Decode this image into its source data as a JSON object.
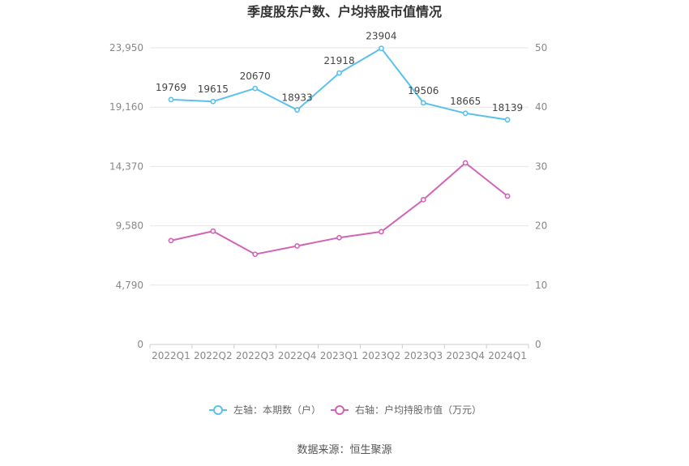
{
  "title": "季度股东户数、户均持股市值情况",
  "source": "数据来源：恒生聚源",
  "chart_data": {
    "type": "line",
    "categories": [
      "2022Q1",
      "2022Q2",
      "2022Q3",
      "2022Q4",
      "2023Q1",
      "2023Q2",
      "2023Q3",
      "2023Q4",
      "2024Q1"
    ],
    "left_axis": {
      "ticks": [
        "0",
        "4,790",
        "9,580",
        "14,370",
        "19,160",
        "23,950"
      ],
      "ylim": [
        0,
        23950
      ]
    },
    "right_axis": {
      "ticks": [
        "0",
        "10",
        "20",
        "30",
        "40",
        "50"
      ],
      "ylim": [
        0,
        50
      ]
    },
    "grid": true,
    "legend_position": "bottom",
    "series": [
      {
        "name": "左轴：本期数（户）",
        "axis": "left",
        "color": "#5bc0eb",
        "values": [
          19769,
          19615,
          20670,
          18933,
          21918,
          23904,
          19506,
          18665,
          18139
        ],
        "labels": [
          "19769",
          "19615",
          "20670",
          "18933",
          "21918",
          "23904",
          "19506",
          "18665",
          "18139"
        ]
      },
      {
        "name": "右轴：户均持股市值（万元）",
        "axis": "right",
        "color": "#d264b6",
        "values": [
          17.5,
          19.1,
          15.2,
          16.6,
          18.0,
          19.0,
          24.4,
          30.6,
          25.0
        ]
      }
    ]
  }
}
